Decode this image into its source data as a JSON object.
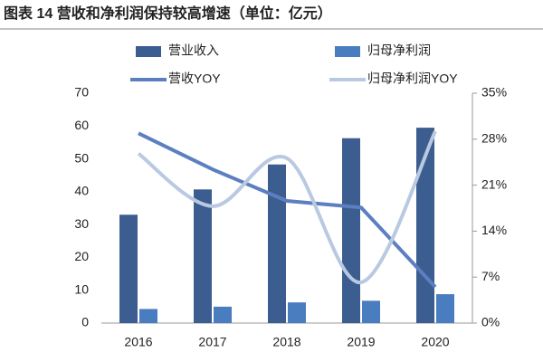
{
  "chart_data": {
    "type": "bar-line",
    "title": "图表 14 营收和净利润保持较高增速（单位：亿元）",
    "categories": [
      "2016",
      "2017",
      "2018",
      "2019",
      "2020"
    ],
    "ylim": [
      0,
      70
    ],
    "yticks": [
      0,
      10,
      20,
      30,
      40,
      50,
      60,
      70
    ],
    "y2lim": [
      0,
      35
    ],
    "y2ticks": [
      {
        "value": 0,
        "label": "0%"
      },
      {
        "value": 7,
        "label": "7%"
      },
      {
        "value": 14,
        "label": "14%"
      },
      {
        "value": 21,
        "label": "21%"
      },
      {
        "value": 28,
        "label": "28%"
      },
      {
        "value": 35,
        "label": "35%"
      }
    ],
    "series": [
      {
        "name": "营业收入",
        "kind": "bar",
        "color": "#3c5d8f",
        "values": [
          33.0,
          40.7,
          48.3,
          56.3,
          59.5
        ]
      },
      {
        "name": "归母净利润",
        "kind": "bar",
        "color": "#4a7cc0",
        "values": [
          4.3,
          5.0,
          6.3,
          6.8,
          8.8
        ]
      },
      {
        "name": "营收YOY",
        "kind": "line",
        "axis": "y2",
        "color": "#5b7fc0",
        "values": [
          28.9,
          23.4,
          18.6,
          17.6,
          5.5
        ]
      },
      {
        "name": "归母净利润YOY",
        "kind": "smooth-line",
        "axis": "y2",
        "color": "#b9c9e2",
        "values": [
          25.8,
          17.8,
          25.1,
          6.2,
          29.2
        ]
      }
    ]
  }
}
